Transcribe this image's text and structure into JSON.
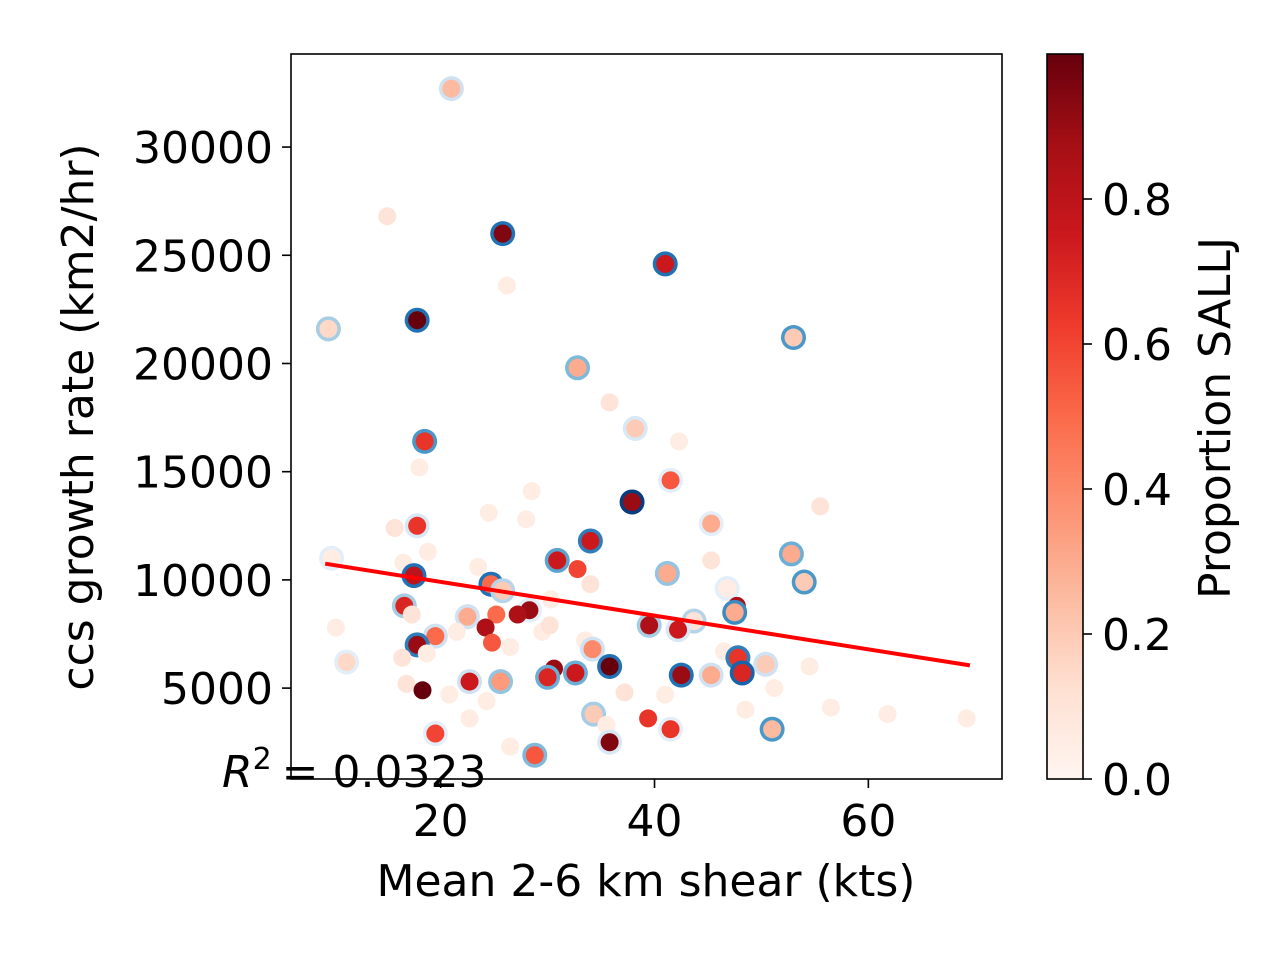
{
  "chart_data": {
    "type": "scatter",
    "xlabel": "Mean 2-6 km shear (kts)",
    "ylabel": "ccs growth rate (km2/hr)",
    "xlim": [
      6,
      72.5
    ],
    "ylim": [
      800,
      34300
    ],
    "xticks": [
      20,
      40,
      60
    ],
    "yticks": [
      5000,
      10000,
      15000,
      20000,
      25000,
      30000
    ],
    "annotation": {
      "r2_prefix": "R",
      "r2_sup": "2",
      "r2_value": "= 0.0323"
    },
    "colorbar": {
      "label": "Proportion SALLJ",
      "ticks": [
        0.0,
        0.2,
        0.4,
        0.6,
        0.8
      ],
      "range": [
        0,
        1
      ],
      "colormap": "Reds"
    },
    "fit_line": {
      "x": [
        9.2,
        69.5
      ],
      "y": [
        10750,
        6050
      ],
      "color": "#ff0000"
    },
    "points": [
      {
        "x": 21,
        "y": 32700,
        "c": 0.25,
        "e": 0.2
      },
      {
        "x": 15,
        "y": 26800,
        "c": 0.1,
        "e": null
      },
      {
        "x": 25.8,
        "y": 26000,
        "c": 0.95,
        "e": 0.75
      },
      {
        "x": 41,
        "y": 24600,
        "c": 0.75,
        "e": 0.75
      },
      {
        "x": 26.2,
        "y": 23600,
        "c": 0.05,
        "e": null
      },
      {
        "x": 17.8,
        "y": 22000,
        "c": 1.0,
        "e": 0.75
      },
      {
        "x": 9.5,
        "y": 21600,
        "c": 0.15,
        "e": 0.35
      },
      {
        "x": 53,
        "y": 21200,
        "c": 0.2,
        "e": 0.6
      },
      {
        "x": 32.8,
        "y": 19800,
        "c": 0.3,
        "e": 0.45
      },
      {
        "x": 35.8,
        "y": 18200,
        "c": 0.1,
        "e": null
      },
      {
        "x": 38.2,
        "y": 17000,
        "c": 0.2,
        "e": 0.15
      },
      {
        "x": 18.5,
        "y": 16400,
        "c": 0.65,
        "e": 0.6
      },
      {
        "x": 42.3,
        "y": 16400,
        "c": 0.05,
        "e": null
      },
      {
        "x": 18,
        "y": 15200,
        "c": 0.05,
        "e": null
      },
      {
        "x": 41.5,
        "y": 14600,
        "c": 0.55,
        "e": 0.1
      },
      {
        "x": 28.5,
        "y": 14100,
        "c": 0.05,
        "e": null
      },
      {
        "x": 37.9,
        "y": 13600,
        "c": 0.9,
        "e": 0.95
      },
      {
        "x": 55.5,
        "y": 13400,
        "c": 0.1,
        "e": null
      },
      {
        "x": 24.5,
        "y": 13100,
        "c": 0.05,
        "e": null
      },
      {
        "x": 28,
        "y": 12800,
        "c": 0.05,
        "e": null
      },
      {
        "x": 45.3,
        "y": 12600,
        "c": 0.3,
        "e": 0.1
      },
      {
        "x": 17.8,
        "y": 12500,
        "c": 0.65,
        "e": 0.15
      },
      {
        "x": 15.7,
        "y": 12400,
        "c": 0.1,
        "e": null
      },
      {
        "x": 34,
        "y": 11800,
        "c": 0.75,
        "e": 0.7
      },
      {
        "x": 52.8,
        "y": 11200,
        "c": 0.3,
        "e": 0.5
      },
      {
        "x": 18.8,
        "y": 11300,
        "c": 0.05,
        "e": null
      },
      {
        "x": 9.8,
        "y": 11000,
        "c": 0.05,
        "e": 0.1
      },
      {
        "x": 30.9,
        "y": 10900,
        "c": 0.75,
        "e": 0.55
      },
      {
        "x": 45.3,
        "y": 10900,
        "c": 0.1,
        "e": null
      },
      {
        "x": 16.5,
        "y": 10800,
        "c": 0.05,
        "e": null
      },
      {
        "x": 32.8,
        "y": 10500,
        "c": 0.6,
        "e": null
      },
      {
        "x": 41.2,
        "y": 10300,
        "c": 0.3,
        "e": 0.4
      },
      {
        "x": 23.5,
        "y": 10600,
        "c": 0.05,
        "e": null
      },
      {
        "x": 17.5,
        "y": 10200,
        "c": 0.8,
        "e": 0.75
      },
      {
        "x": 54,
        "y": 9900,
        "c": 0.2,
        "e": 0.6
      },
      {
        "x": 24.7,
        "y": 9800,
        "c": 0.5,
        "e": 0.75
      },
      {
        "x": 34,
        "y": 9800,
        "c": 0.1,
        "e": null
      },
      {
        "x": 46.8,
        "y": 9600,
        "c": 0.05,
        "e": 0.1
      },
      {
        "x": 25.8,
        "y": 9500,
        "c": 0.2,
        "e": 0.3
      },
      {
        "x": 30.3,
        "y": 9100,
        "c": 0.05,
        "e": null
      },
      {
        "x": 16.6,
        "y": 8800,
        "c": 0.7,
        "e": 0.35
      },
      {
        "x": 47.7,
        "y": 8800,
        "c": 0.85,
        "e": null
      },
      {
        "x": 28.3,
        "y": 8600,
        "c": 0.9,
        "e": 0.1
      },
      {
        "x": 47.5,
        "y": 8500,
        "c": 0.3,
        "e": 0.65
      },
      {
        "x": 25.2,
        "y": 8400,
        "c": 0.5,
        "e": null
      },
      {
        "x": 27.2,
        "y": 8400,
        "c": 0.85,
        "e": null
      },
      {
        "x": 22.5,
        "y": 8300,
        "c": 0.3,
        "e": 0.2
      },
      {
        "x": 17.3,
        "y": 8400,
        "c": 0.1,
        "e": null
      },
      {
        "x": 43.7,
        "y": 8100,
        "c": 0.1,
        "e": 0.3
      },
      {
        "x": 39.5,
        "y": 7900,
        "c": 0.85,
        "e": 0.35
      },
      {
        "x": 24.2,
        "y": 7800,
        "c": 0.85,
        "e": null
      },
      {
        "x": 21.5,
        "y": 7600,
        "c": 0.05,
        "e": null
      },
      {
        "x": 42.2,
        "y": 7700,
        "c": 0.75,
        "e": 0.15
      },
      {
        "x": 29.5,
        "y": 7600,
        "c": 0.05,
        "e": null
      },
      {
        "x": 19.5,
        "y": 7400,
        "c": 0.5,
        "e": 0.2
      },
      {
        "x": 10.2,
        "y": 7800,
        "c": 0.05,
        "e": null
      },
      {
        "x": 30.2,
        "y": 7900,
        "c": 0.1,
        "e": null
      },
      {
        "x": 33.5,
        "y": 7200,
        "c": 0.05,
        "e": null
      },
      {
        "x": 24.8,
        "y": 7100,
        "c": 0.55,
        "e": null
      },
      {
        "x": 17.8,
        "y": 7000,
        "c": 0.9,
        "e": 0.7
      },
      {
        "x": 26.5,
        "y": 6900,
        "c": 0.05,
        "e": null
      },
      {
        "x": 34.2,
        "y": 6800,
        "c": 0.4,
        "e": 0.2
      },
      {
        "x": 46.5,
        "y": 6700,
        "c": 0.05,
        "e": null
      },
      {
        "x": 18.7,
        "y": 6600,
        "c": 0.05,
        "e": null
      },
      {
        "x": 47.8,
        "y": 6400,
        "c": 0.65,
        "e": 0.7
      },
      {
        "x": 16.4,
        "y": 6400,
        "c": 0.1,
        "e": null
      },
      {
        "x": 11.2,
        "y": 6200,
        "c": 0.15,
        "e": 0.1
      },
      {
        "x": 50.4,
        "y": 6100,
        "c": 0.2,
        "e": 0.2
      },
      {
        "x": 35.8,
        "y": 6000,
        "c": 1.0,
        "e": 0.75
      },
      {
        "x": 30.6,
        "y": 5900,
        "c": 0.9,
        "e": null
      },
      {
        "x": 54.5,
        "y": 6000,
        "c": 0.05,
        "e": null
      },
      {
        "x": 48.2,
        "y": 5700,
        "c": 0.7,
        "e": 0.8
      },
      {
        "x": 32.6,
        "y": 5700,
        "c": 0.75,
        "e": 0.5
      },
      {
        "x": 42.5,
        "y": 5600,
        "c": 0.9,
        "e": 0.75
      },
      {
        "x": 45.3,
        "y": 5600,
        "c": 0.3,
        "e": 0.2
      },
      {
        "x": 30,
        "y": 5500,
        "c": 0.7,
        "e": 0.5
      },
      {
        "x": 25.6,
        "y": 5300,
        "c": 0.35,
        "e": 0.4
      },
      {
        "x": 22.7,
        "y": 5300,
        "c": 0.75,
        "e": 0.2
      },
      {
        "x": 16.8,
        "y": 5200,
        "c": 0.1,
        "e": null
      },
      {
        "x": 18.3,
        "y": 4900,
        "c": 1.0,
        "e": null
      },
      {
        "x": 51.2,
        "y": 5000,
        "c": 0.05,
        "e": null
      },
      {
        "x": 37.2,
        "y": 4800,
        "c": 0.1,
        "e": null
      },
      {
        "x": 41,
        "y": 4700,
        "c": 0.05,
        "e": null
      },
      {
        "x": 24.3,
        "y": 4400,
        "c": 0.05,
        "e": null
      },
      {
        "x": 56.5,
        "y": 4100,
        "c": 0.05,
        "e": null
      },
      {
        "x": 48.5,
        "y": 4000,
        "c": 0.05,
        "e": null
      },
      {
        "x": 61.8,
        "y": 3800,
        "c": 0.05,
        "e": null
      },
      {
        "x": 34.3,
        "y": 3800,
        "c": 0.2,
        "e": 0.35
      },
      {
        "x": 39.4,
        "y": 3600,
        "c": 0.65,
        "e": null
      },
      {
        "x": 69.2,
        "y": 3600,
        "c": 0.05,
        "e": null
      },
      {
        "x": 22.7,
        "y": 3600,
        "c": 0.05,
        "e": null
      },
      {
        "x": 35.5,
        "y": 3300,
        "c": 0.05,
        "e": null
      },
      {
        "x": 41.5,
        "y": 3100,
        "c": 0.65,
        "e": 0.1
      },
      {
        "x": 51,
        "y": 3100,
        "c": 0.25,
        "e": 0.6
      },
      {
        "x": 19.5,
        "y": 2900,
        "c": 0.6,
        "e": 0.1
      },
      {
        "x": 35.8,
        "y": 2500,
        "c": 0.95,
        "e": 0.15
      },
      {
        "x": 26.5,
        "y": 2300,
        "c": 0.05,
        "e": null
      },
      {
        "x": 28.8,
        "y": 1900,
        "c": 0.55,
        "e": 0.45
      },
      {
        "x": 20.8,
        "y": 4700,
        "c": 0.05,
        "e": null
      }
    ]
  }
}
